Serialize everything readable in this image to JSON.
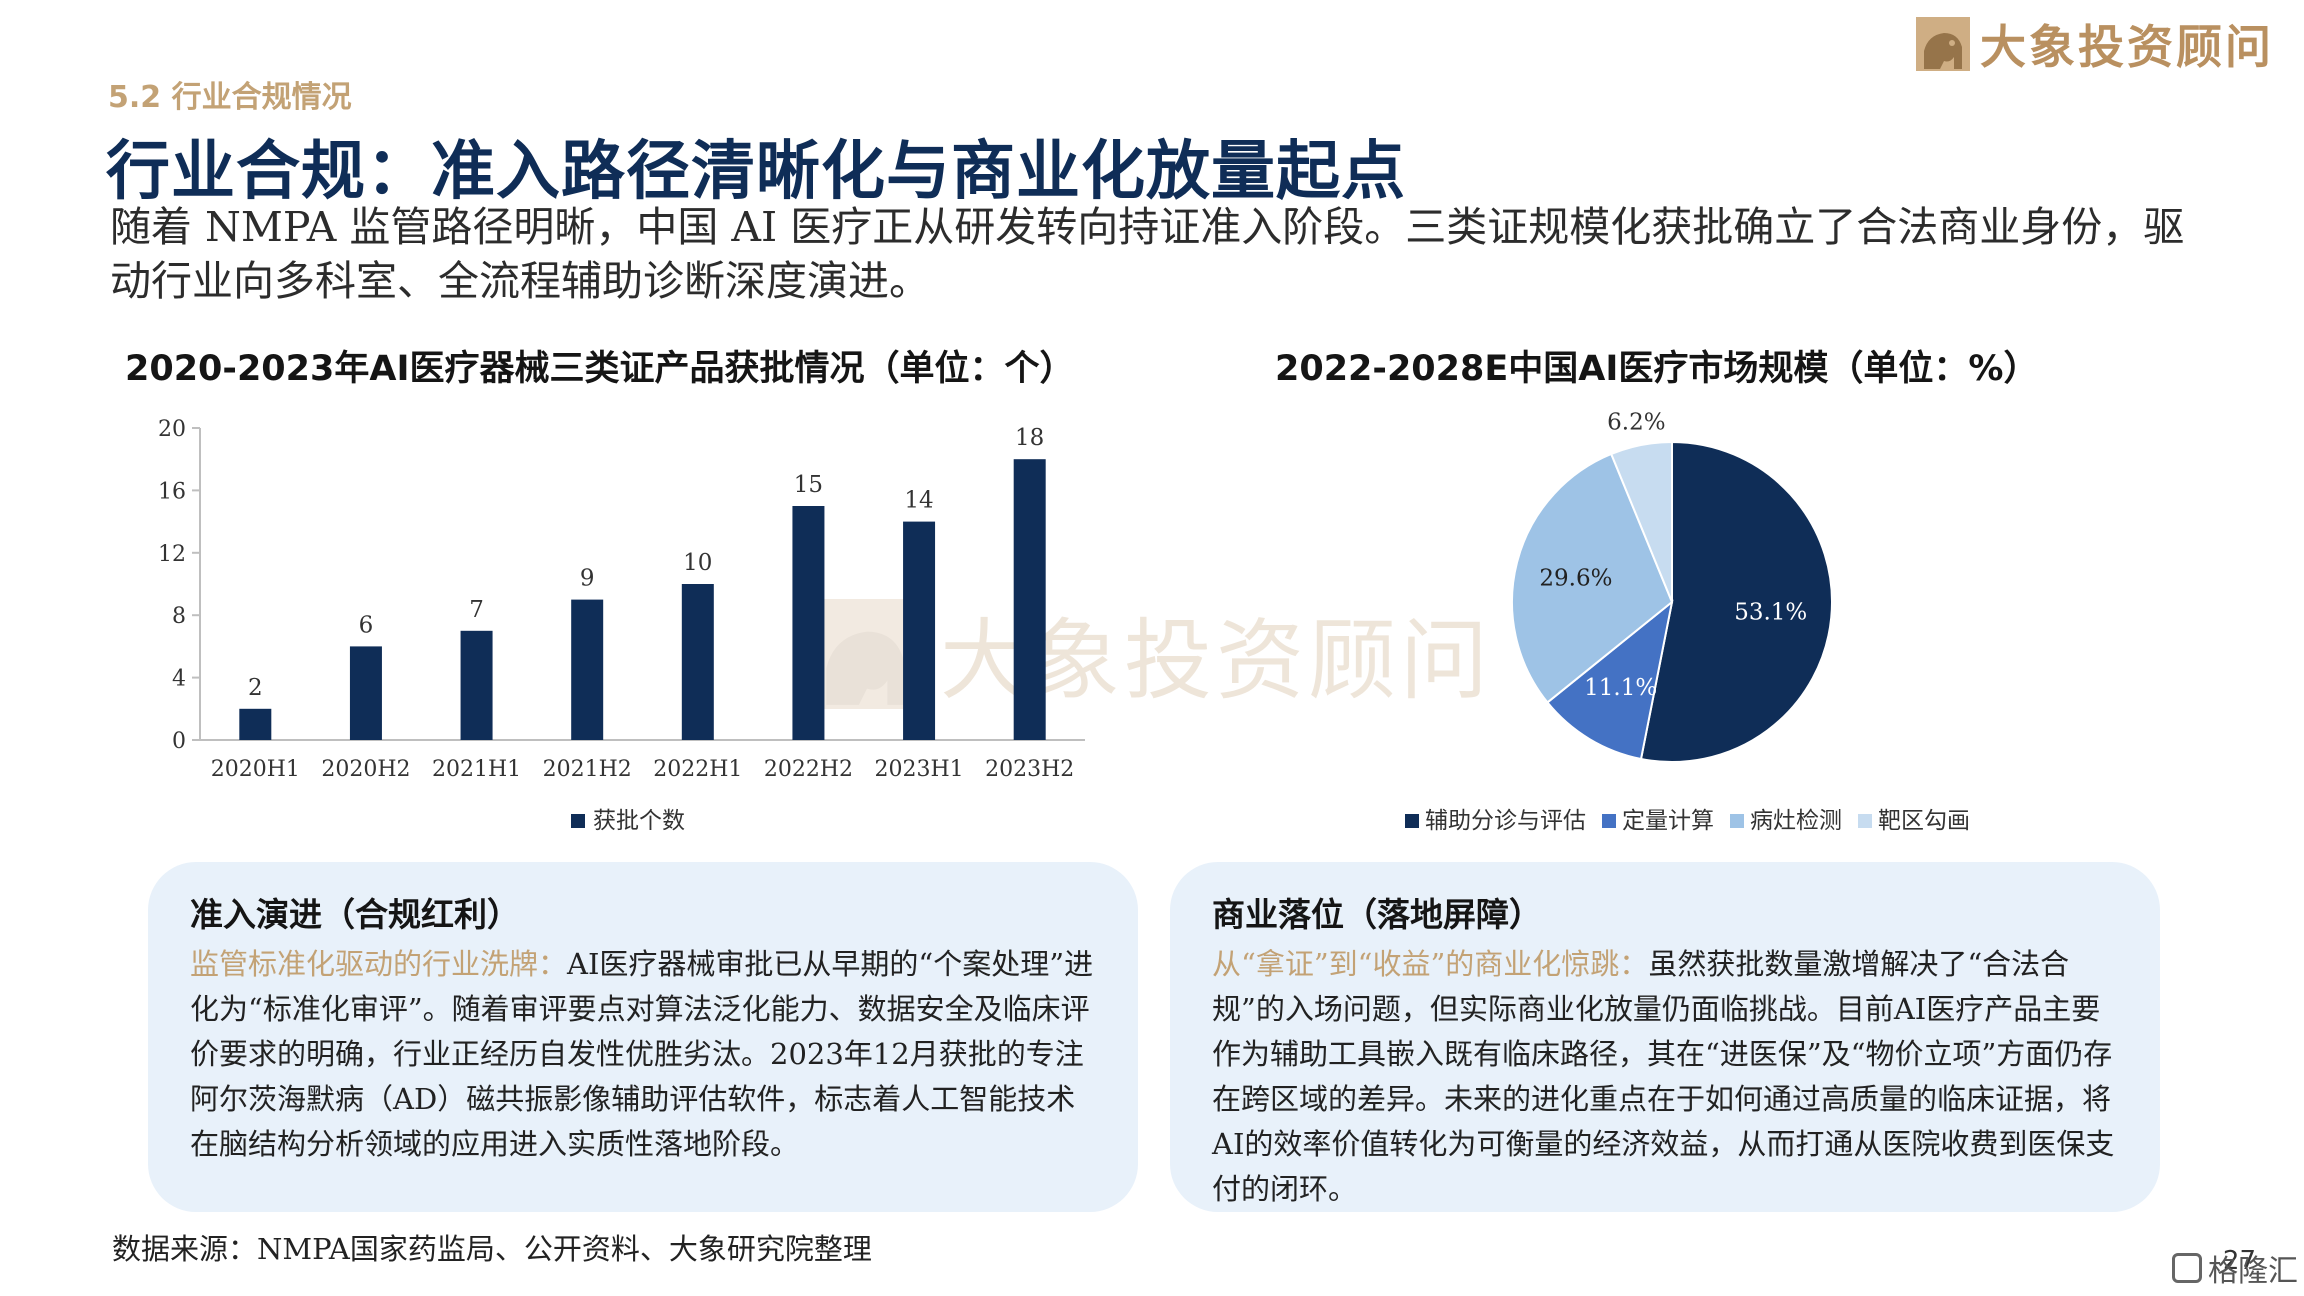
{
  "header": {
    "brand_name": "大象投资顾问",
    "section_label": "5.2 行业合规情况",
    "title": "行业合规：准入路径清晰化与商业化放量起点",
    "subtitle": "随着 NMPA 监管路径明晰，中国 AI 医疗正从研发转向持证准入阶段。三类证规模化获批确立了合法商业身份，驱动行业向多科室、全流程辅助诊断深度演进。"
  },
  "watermark": {
    "text": "大象投资顾问"
  },
  "colors": {
    "title_navy": "#0f2d57",
    "gold": "#c3a275",
    "bar": "#0f2d57",
    "card_bg": "#e8f1fa"
  },
  "chart_data": [
    {
      "type": "bar",
      "title": "2020-2023年AI医疗器械三类证产品获批情况（单位：个）",
      "categories": [
        "2020H1",
        "2020H2",
        "2021H1",
        "2021H2",
        "2022H1",
        "2022H2",
        "2023H1",
        "2023H2"
      ],
      "series": [
        {
          "name": "获批个数",
          "values": [
            2,
            6,
            7,
            9,
            10,
            15,
            14,
            18
          ],
          "color": "#0f2d57"
        }
      ],
      "ylim": [
        0,
        20
      ],
      "yticks": [
        0,
        4,
        8,
        12,
        16,
        20
      ],
      "grid": false,
      "legend": "bottom"
    },
    {
      "type": "pie",
      "title": "2022-2028E中国AI医疗市场规模（单位：%）",
      "slices": [
        {
          "name": "辅助分诊与评估",
          "value": 53.1,
          "label": "53.1%",
          "color": "#0f2d57"
        },
        {
          "name": "定量计算",
          "value": 11.1,
          "label": "11.1%",
          "color": "#4472c4"
        },
        {
          "name": "病灶检测",
          "value": 29.6,
          "label": "29.6%",
          "color": "#9ec3e6"
        },
        {
          "name": "靶区勾画",
          "value": 6.2,
          "label": "6.2%",
          "color": "#c7dcf0"
        }
      ],
      "legend": "bottom"
    }
  ],
  "cards": {
    "left": {
      "title": "准入演进（合规红利）",
      "lead": "监管标准化驱动的行业洗牌：",
      "body": "AI医疗器械审批已从早期的“个案处理”进化为“标准化审评”。随着审评要点对算法泛化能力、数据安全及临床评价要求的明确，行业正经历自发性优胜劣汰。2023年12月获批的专注阿尔茨海默病（AD）磁共振影像辅助评估软件，标志着人工智能技术在脑结构分析领域的应用进入实质性落地阶段。"
    },
    "right": {
      "title": "商业落位（落地屏障）",
      "lead": "从“拿证”到“收益”的商业化惊跳：",
      "body": "虽然获批数量激增解决了“合法合规”的入场问题，但实际商业化放量仍面临挑战。目前AI医疗产品主要作为辅助工具嵌入既有临床路径，其在“进医保”及“物价立项”方面仍存在跨区域的差异。未来的进化重点在于如何通过高质量的临床证据，将AI的效率价值转化为可衡量的经济效益，从而打通从医院收费到医保支付的闭环。"
    }
  },
  "footer": {
    "source": "数据来源：NMPA国家药监局、公开资料、大象研究院整理",
    "page_number": "27",
    "corner_mark": "格隆汇"
  }
}
